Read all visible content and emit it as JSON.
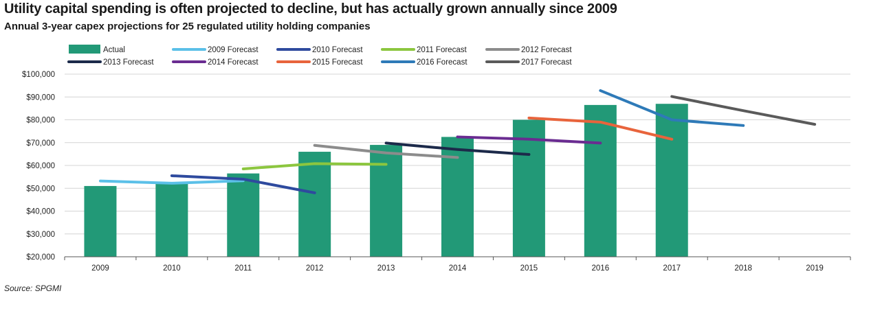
{
  "title": "Utility capital spending is often projected to decline, but has actually grown annually since 2009",
  "subtitle": "Annual 3-year capex projections for 25 regulated utility holding companies",
  "source": "Source: SPGMI",
  "chart_data": {
    "type": "bar",
    "categories": [
      "2009",
      "2010",
      "2011",
      "2012",
      "2013",
      "2014",
      "2015",
      "2016",
      "2017",
      "2018",
      "2019"
    ],
    "ylim": [
      20000,
      100000
    ],
    "yticks": [
      20000,
      30000,
      40000,
      50000,
      60000,
      70000,
      80000,
      90000,
      100000
    ],
    "ytick_labels": [
      "$20,000",
      "$30,000",
      "$40,000",
      "$50,000",
      "$60,000",
      "$70,000",
      "$80,000",
      "$90,000",
      "$100,000"
    ],
    "grid": true,
    "legend_position": "top",
    "bars": {
      "name": "Actual",
      "color": "#229977",
      "values": [
        51000,
        52000,
        56500,
        66000,
        69000,
        72500,
        80000,
        86500,
        87000,
        null,
        null
      ]
    },
    "series": [
      {
        "name": "2009 Forecast",
        "color": "#5bc0e8",
        "x": [
          "2009",
          "2010",
          "2011"
        ],
        "values": [
          53200,
          52200,
          53300
        ]
      },
      {
        "name": "2010 Forecast",
        "color": "#2e4a9e",
        "x": [
          "2010",
          "2011",
          "2012"
        ],
        "values": [
          55500,
          54000,
          48000
        ]
      },
      {
        "name": "2011 Forecast",
        "color": "#8cc63f",
        "x": [
          "2011",
          "2012",
          "2013"
        ],
        "values": [
          58500,
          60800,
          60500
        ]
      },
      {
        "name": "2012 Forecast",
        "color": "#8c8c8c",
        "x": [
          "2012",
          "2013",
          "2014"
        ],
        "values": [
          68800,
          65500,
          63500
        ]
      },
      {
        "name": "2013 Forecast",
        "color": "#1c2a4a",
        "x": [
          "2013",
          "2014",
          "2015"
        ],
        "values": [
          69800,
          67000,
          64800
        ]
      },
      {
        "name": "2014 Forecast",
        "color": "#6a2c91",
        "x": [
          "2014",
          "2015",
          "2016"
        ],
        "values": [
          72500,
          71500,
          69800
        ]
      },
      {
        "name": "2015 Forecast",
        "color": "#e8643c",
        "x": [
          "2015",
          "2016",
          "2017"
        ],
        "values": [
          80800,
          79000,
          71500
        ]
      },
      {
        "name": "2016 Forecast",
        "color": "#2e7ab8",
        "x": [
          "2016",
          "2017",
          "2018"
        ],
        "values": [
          92800,
          80000,
          77500
        ]
      },
      {
        "name": "2017 Forecast",
        "color": "#5a5a5a",
        "x": [
          "2017",
          "2018",
          "2019"
        ],
        "values": [
          90200,
          84000,
          78000
        ]
      }
    ]
  }
}
